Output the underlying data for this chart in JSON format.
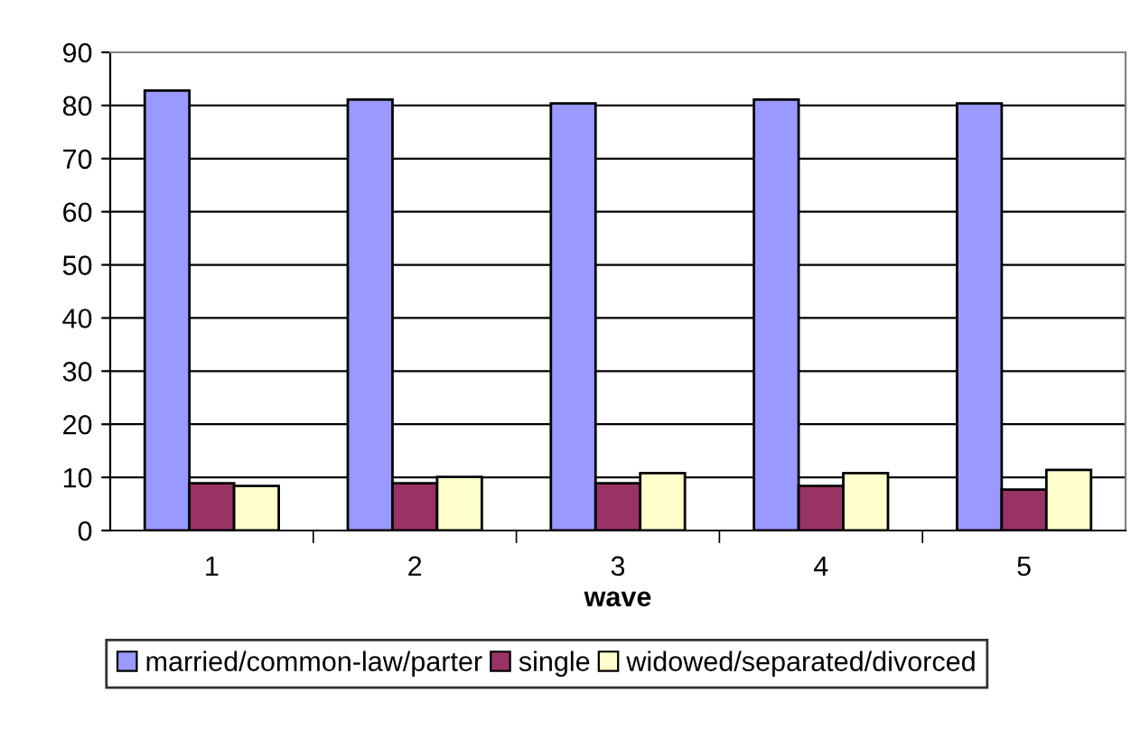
{
  "chart_data": {
    "type": "bar",
    "xlabel": "wave",
    "categories": [
      "1",
      "2",
      "3",
      "4",
      "5"
    ],
    "series": [
      {
        "name": "married/common-law/parter",
        "color": "#9999ff",
        "values": [
          82.8,
          81.1,
          80.4,
          81.1,
          80.4
        ]
      },
      {
        "name": "single",
        "color": "#993366",
        "values": [
          8.9,
          8.9,
          8.9,
          8.4,
          7.7
        ]
      },
      {
        "name": "widowed/separated/divorced",
        "color": "#ffffcc",
        "values": [
          8.4,
          10.1,
          10.8,
          10.8,
          11.4
        ]
      }
    ],
    "ylim": [
      0,
      90
    ],
    "yticks": [
      0,
      10,
      20,
      30,
      40,
      50,
      60,
      70,
      80,
      90
    ],
    "grid": "y",
    "legend": "bottom"
  }
}
